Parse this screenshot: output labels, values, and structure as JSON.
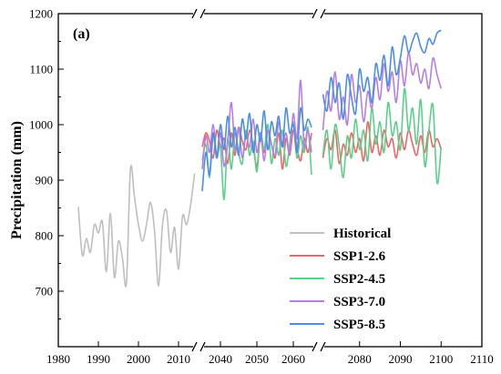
{
  "chart_data": {
    "type": "line",
    "panel_label": "(a)",
    "ylabel": "Precipitation (mm)",
    "xlabel": "",
    "ylim": [
      600,
      1200
    ],
    "y_ticks": [
      700,
      800,
      900,
      1000,
      1100,
      1200
    ],
    "x_segments": [
      {
        "range": [
          1980,
          2015
        ],
        "ticks": [
          1980,
          1990,
          2000,
          2010
        ]
      },
      {
        "range": [
          2034,
          2067
        ],
        "ticks": [
          2040,
          2050,
          2060
        ]
      },
      {
        "range": [
          2070,
          2110
        ],
        "ticks": [
          2080,
          2090,
          2100,
          2110
        ]
      }
    ],
    "axis_break_symbol": "//",
    "grid": false,
    "legend_position": "bottom-right",
    "series": [
      {
        "name": "Historical",
        "color": "#bfbfbf",
        "x": [
          1985,
          1986,
          1987,
          1988,
          1989,
          1990,
          1991,
          1992,
          1993,
          1994,
          1995,
          1996,
          1997,
          1998,
          1999,
          2000,
          2001,
          2002,
          2003,
          2004,
          2005,
          2006,
          2007,
          2008,
          2009,
          2010,
          2011,
          2012,
          2013,
          2014
        ],
        "y": [
          852,
          765,
          795,
          770,
          820,
          805,
          825,
          735,
          840,
          725,
          790,
          760,
          715,
          920,
          870,
          820,
          790,
          820,
          860,
          810,
          710,
          820,
          845,
          770,
          815,
          740,
          835,
          820,
          855,
          912
        ]
      },
      {
        "name": "SSP1-2.6",
        "color": "#f06464",
        "x": [
          2035,
          2036,
          2037,
          2038,
          2039,
          2040,
          2041,
          2042,
          2043,
          2044,
          2045,
          2046,
          2047,
          2048,
          2049,
          2050,
          2051,
          2052,
          2053,
          2054,
          2055,
          2056,
          2057,
          2058,
          2059,
          2060,
          2061,
          2062,
          2063,
          2064,
          2065,
          2071,
          2072,
          2073,
          2074,
          2075,
          2076,
          2077,
          2078,
          2079,
          2080,
          2081,
          2082,
          2083,
          2084,
          2085,
          2086,
          2087,
          2088,
          2089,
          2090,
          2091,
          2092,
          2093,
          2094,
          2095,
          2096,
          2097,
          2098,
          2099,
          2100
        ],
        "y": [
          960,
          985,
          970,
          940,
          990,
          960,
          975,
          930,
          985,
          945,
          995,
          970,
          955,
          990,
          960,
          925,
          980,
          950,
          990,
          965,
          940,
          985,
          920,
          975,
          945,
          990,
          960,
          935,
          975,
          950,
          985,
          940,
          975,
          955,
          990,
          930,
          965,
          945,
          985,
          950,
          975,
          935,
          1005,
          950,
          980,
          945,
          990,
          960,
          975,
          940,
          985,
          955,
          990,
          965,
          945,
          980,
          950,
          990,
          960,
          975,
          955
        ]
      },
      {
        "name": "SSP2-4.5",
        "color": "#5ccf8a",
        "x": [
          2035,
          2036,
          2037,
          2038,
          2039,
          2040,
          2041,
          2042,
          2043,
          2044,
          2045,
          2046,
          2047,
          2048,
          2049,
          2050,
          2051,
          2052,
          2053,
          2054,
          2055,
          2056,
          2057,
          2058,
          2059,
          2060,
          2061,
          2062,
          2063,
          2064,
          2065,
          2071,
          2072,
          2073,
          2074,
          2075,
          2076,
          2077,
          2078,
          2079,
          2080,
          2081,
          2082,
          2083,
          2084,
          2085,
          2086,
          2087,
          2088,
          2089,
          2090,
          2091,
          2092,
          2093,
          2094,
          2095,
          2096,
          2097,
          2098,
          2099,
          2100
        ],
        "y": [
          935,
          965,
          905,
          980,
          940,
          960,
          865,
          975,
          920,
          985,
          950,
          930,
          990,
          945,
          970,
          915,
          985,
          955,
          1000,
          930,
          975,
          945,
          990,
          925,
          965,
          1005,
          940,
          980,
          950,
          995,
          910,
          945,
          990,
          920,
          1000,
          960,
          905,
          980,
          940,
          1010,
          955,
          990,
          935,
          1030,
          965,
          1005,
          950,
          1040,
          980,
          1005,
          955,
          1065,
          990,
          1030,
          965,
          1045,
          925,
          990,
          1035,
          895,
          960
        ]
      },
      {
        "name": "SSP3-7.0",
        "color": "#b77ee6",
        "x": [
          2035,
          2036,
          2037,
          2038,
          2039,
          2040,
          2041,
          2042,
          2043,
          2044,
          2045,
          2046,
          2047,
          2048,
          2049,
          2050,
          2051,
          2052,
          2053,
          2054,
          2055,
          2056,
          2057,
          2058,
          2059,
          2060,
          2061,
          2062,
          2063,
          2064,
          2065,
          2071,
          2072,
          2073,
          2074,
          2075,
          2076,
          2077,
          2078,
          2079,
          2080,
          2081,
          2082,
          2083,
          2084,
          2085,
          2086,
          2087,
          2088,
          2089,
          2090,
          2091,
          2092,
          2093,
          2094,
          2095,
          2096,
          2097,
          2098,
          2099,
          2100
        ],
        "y": [
          920,
          980,
          950,
          1000,
          945,
          985,
          925,
          970,
          1040,
          955,
          995,
          940,
          980,
          960,
          1010,
          950,
          985,
          935,
          990,
          965,
          945,
          1005,
          960,
          985,
          950,
          1020,
          975,
          1080,
          960,
          990,
          950,
          990,
          1060,
          1025,
          1095,
          1010,
          1050,
          1000,
          1090,
          1040,
          1070,
          1005,
          1060,
          1030,
          1085,
          1045,
          1110,
          1060,
          1095,
          1040,
          1115,
          1070,
          1130,
          1090,
          1110,
          1075,
          1100,
          1065,
          1120,
          1090,
          1065
        ]
      },
      {
        "name": "SSP5-8.5",
        "color": "#4a8ee8",
        "x": [
          2035,
          2036,
          2037,
          2038,
          2039,
          2040,
          2041,
          2042,
          2043,
          2044,
          2045,
          2046,
          2047,
          2048,
          2049,
          2050,
          2051,
          2052,
          2053,
          2054,
          2055,
          2056,
          2057,
          2058,
          2059,
          2060,
          2061,
          2062,
          2063,
          2064,
          2065,
          2071,
          2072,
          2073,
          2074,
          2075,
          2076,
          2077,
          2078,
          2079,
          2080,
          2081,
          2082,
          2083,
          2084,
          2085,
          2086,
          2087,
          2088,
          2089,
          2090,
          2091,
          2092,
          2093,
          2094,
          2095,
          2096,
          2097,
          2098,
          2099,
          2100
        ],
        "y": [
          880,
          950,
          910,
          985,
          940,
          1000,
          955,
          1015,
          960,
          995,
          945,
          1010,
          975,
          1020,
          950,
          1000,
          970,
          1025,
          955,
          1005,
          980,
          1015,
          960,
          1030,
          985,
          1000,
          950,
          1030,
          990,
          1010,
          995,
          1055,
          1025,
          1085,
          1040,
          1075,
          1010,
          1090,
          1050,
          1020,
          1100,
          1060,
          1085,
          1040,
          1110,
          1080,
          1125,
          1070,
          1140,
          1090,
          1120,
          1160,
          1130,
          1150,
          1165,
          1140,
          1130,
          1155,
          1145,
          1165,
          1170
        ]
      }
    ]
  }
}
